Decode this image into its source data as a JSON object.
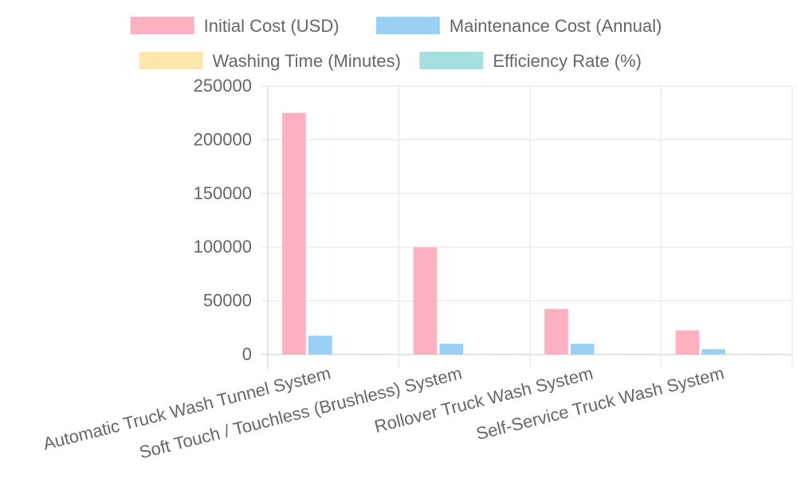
{
  "chart_data": {
    "type": "bar",
    "categories": [
      "Automatic Truck Wash Tunnel System",
      "Soft Touch / Touchless (Brushless) System",
      "Rollover Truck Wash System",
      "Self-Service Truck Wash System"
    ],
    "series": [
      {
        "name": "Initial Cost (USD)",
        "values": [
          225000,
          100000,
          42500,
          22500
        ],
        "color": "#ffb1c1",
        "border": "#ff6384"
      },
      {
        "name": "Maintenance Cost (Annual)",
        "values": [
          17500,
          10000,
          10000,
          5000
        ],
        "color": "#9ad0f5",
        "border": "#36a2eb"
      },
      {
        "name": "Washing Time (Minutes)",
        "values": [
          20,
          30,
          15,
          45
        ],
        "color": "#ffe6aa",
        "border": "#ffcd56"
      },
      {
        "name": "Efficiency Rate (%)",
        "values": [
          90,
          85,
          75,
          60
        ],
        "color": "#a5dfdf",
        "border": "#4bc0c0"
      }
    ],
    "yticks": [
      "0",
      "50000",
      "100000",
      "150000",
      "200000",
      "250000"
    ],
    "ylim": [
      0,
      250000
    ],
    "grid": true,
    "legend_position": "top",
    "title": "",
    "xlabel": "",
    "ylabel": ""
  }
}
